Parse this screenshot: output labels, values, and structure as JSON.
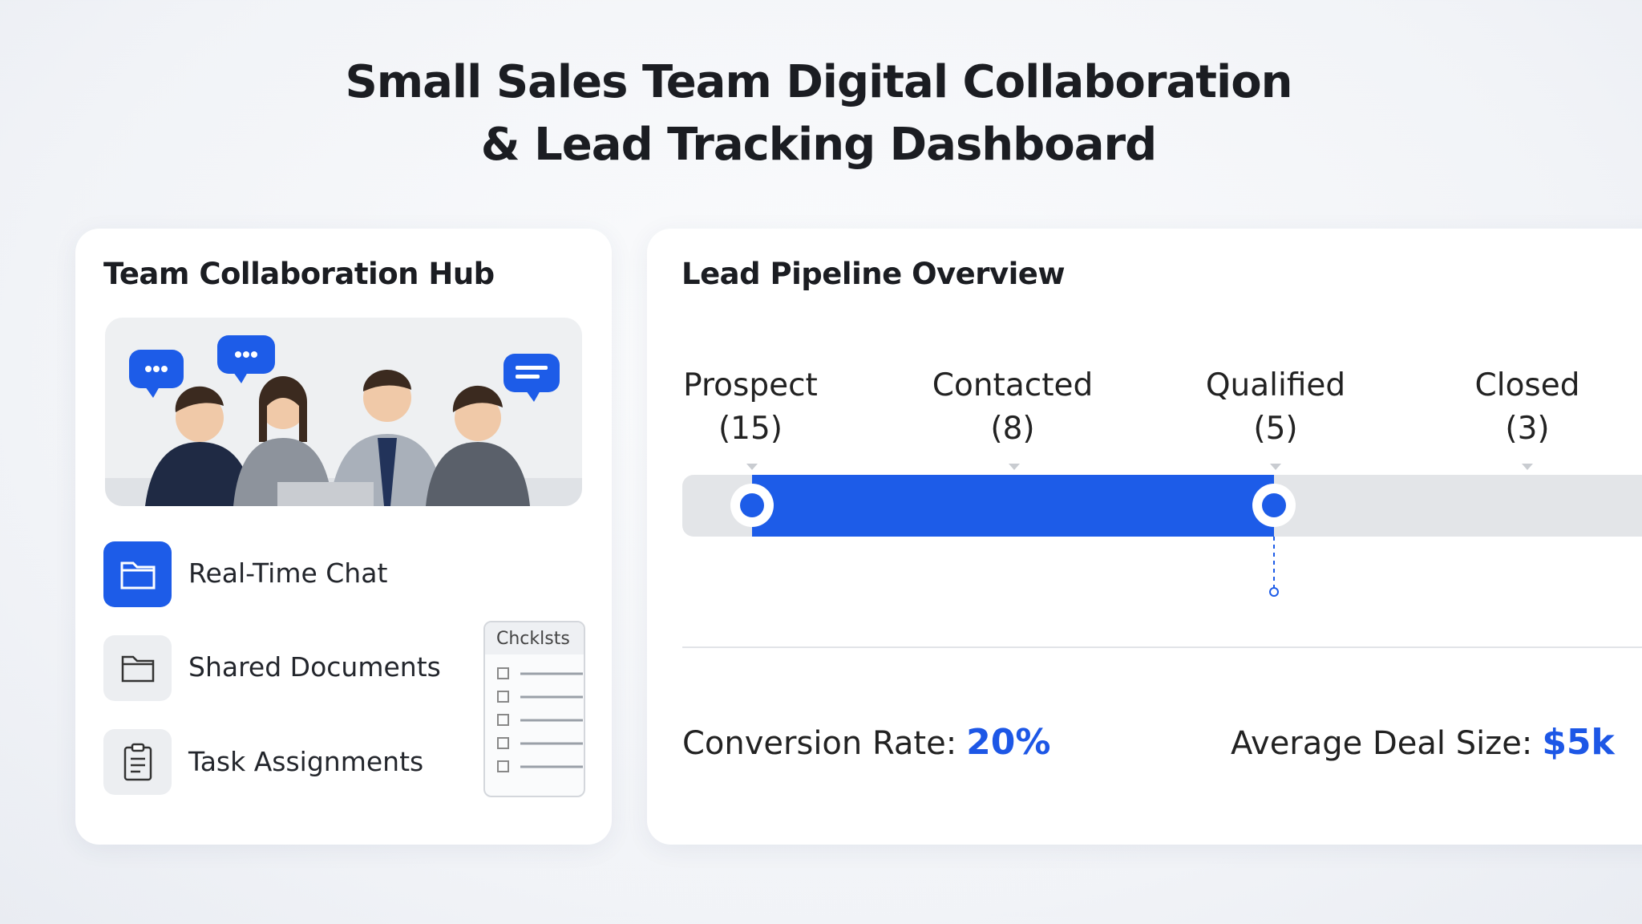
{
  "header": {
    "title_line_1": "Small Sales Team Digital Collaboration",
    "title_line_2": "& Lead Tracking Dashboard"
  },
  "collaboration_panel": {
    "title": "Team Collaboration Hub",
    "features": [
      "Real-Time Chat",
      "Shared Documents",
      "Task Assignments"
    ],
    "checklist_title": "Chcklsts"
  },
  "pipeline_panel": {
    "title": "Lead Pipeline Overview",
    "stages": [
      {
        "name": "Prospect",
        "count": "(15)"
      },
      {
        "name": "Contacted",
        "count": "(8)"
      },
      {
        "name": "Qualified",
        "count": "(5)"
      },
      {
        "name": "Closed",
        "count": "(3)"
      }
    ],
    "metrics": [
      {
        "label": "Conversion Rate:",
        "value": "20%"
      },
      {
        "label": "Average Deal Size:",
        "value": "$5k"
      }
    ]
  }
}
